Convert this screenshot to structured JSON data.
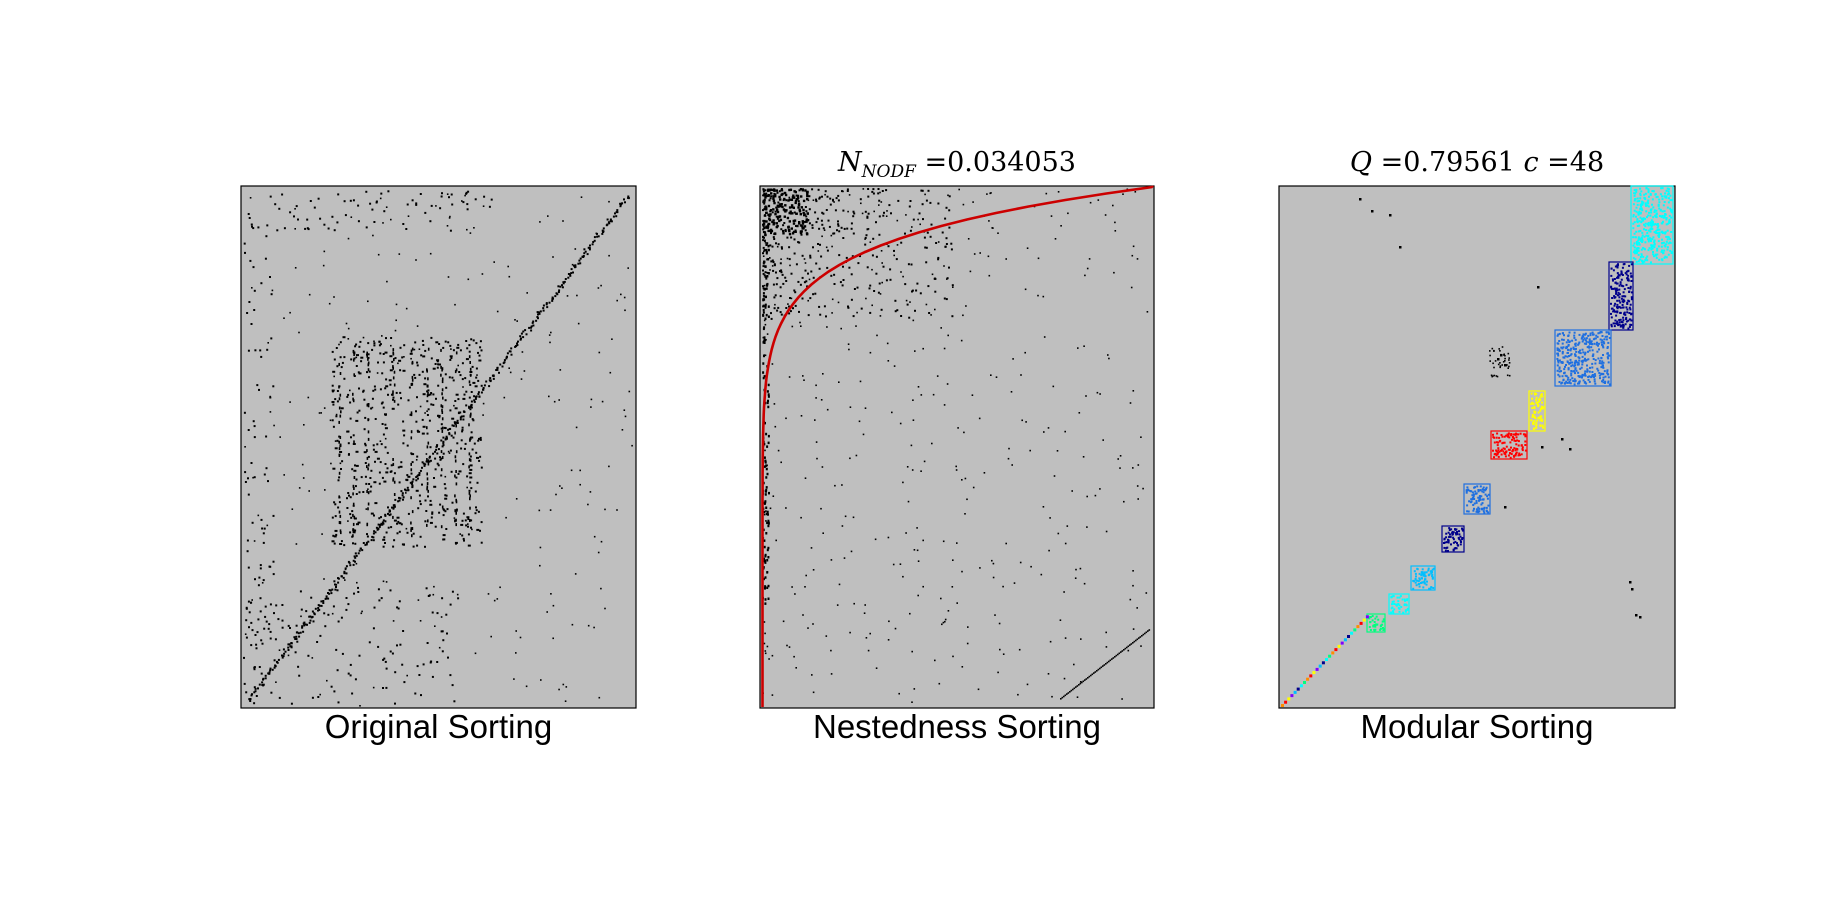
{
  "chart_data": [
    {
      "type": "heatmap",
      "subtype": "binary-matrix",
      "title": "",
      "xlabel": "Original Sorting",
      "ylabel": "",
      "background_color": "#bfbfbf",
      "cell_color": "#000000",
      "annotations": [],
      "pattern": "sparse interactions with a diagonal band running from bottom-left to top-right"
    },
    {
      "type": "heatmap",
      "subtype": "binary-matrix",
      "title": "",
      "title_parts": {
        "symbol": "N",
        "subscript": "NODF",
        "operator": "=",
        "value": "0.034053"
      },
      "xlabel": "Nestedness Sorting",
      "ylabel": "",
      "background_color": "#bfbfbf",
      "cell_color": "#000000",
      "isocline_color": "#cc0000",
      "annotations": [
        "nestedness isocline curve along the top-left edge"
      ],
      "pattern": "interactions concentrated toward the top-left corner"
    },
    {
      "type": "heatmap",
      "subtype": "binary-matrix",
      "title": "",
      "title_parts": {
        "q_symbol": "Q",
        "q_operator": "=",
        "q_value": "0.79561",
        "c_symbol": "c",
        "c_operator": "=",
        "c_value": "48"
      },
      "xlabel": "Modular Sorting",
      "ylabel": "",
      "background_color": "#bfbfbf",
      "cell_color": "#000000",
      "module_colors": [
        "#00ffff",
        "#00008b",
        "#1e6fe0",
        "#ffff00",
        "#ff0000",
        "#00bfff",
        "#ff8c00",
        "#7f00ff",
        "#00ff7f"
      ],
      "annotations": [
        "colored module blocks along the diagonal, largest module at top-right"
      ],
      "pattern": "block-diagonal modules"
    }
  ]
}
